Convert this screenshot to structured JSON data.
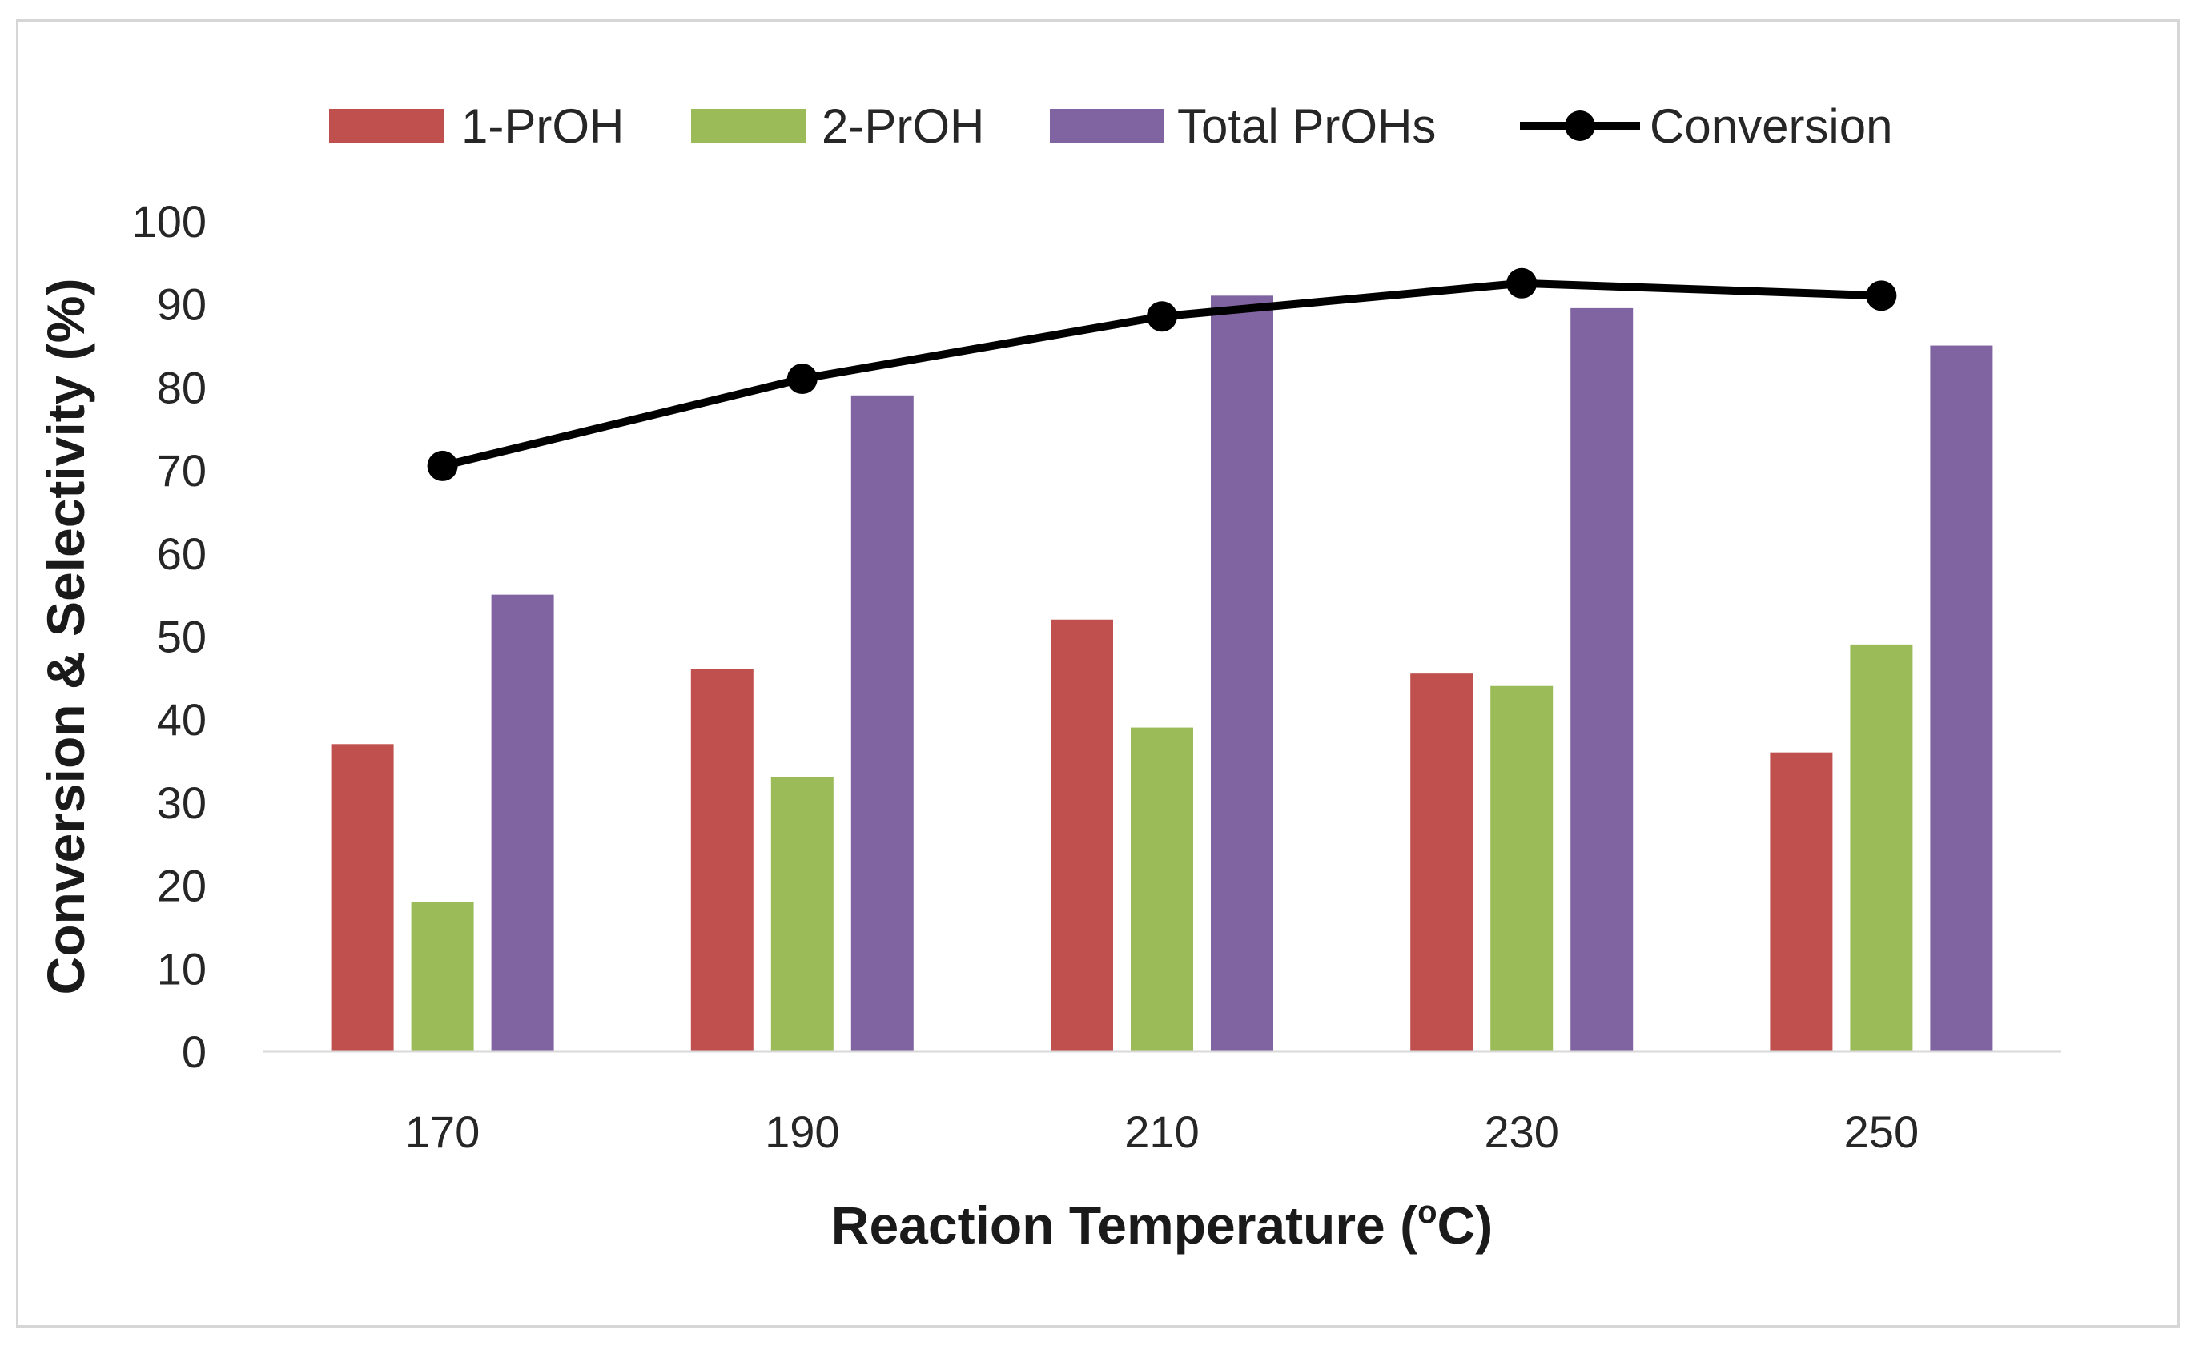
{
  "chart_data": {
    "type": "bar",
    "title": "",
    "categories": [
      "170",
      "190",
      "210",
      "230",
      "250"
    ],
    "series": [
      {
        "name": "1-PrOH",
        "kind": "bar",
        "color": "#c0504d",
        "values": [
          37,
          46,
          52,
          45.5,
          36
        ]
      },
      {
        "name": "2-PrOH",
        "kind": "bar",
        "color": "#9bbb59",
        "values": [
          18,
          33,
          39,
          44,
          49
        ]
      },
      {
        "name": "Total PrOHs",
        "kind": "bar",
        "color": "#8064a2",
        "values": [
          55,
          79,
          91,
          89.5,
          85
        ]
      },
      {
        "name": "Conversion",
        "kind": "line",
        "color": "#000000",
        "values": [
          70.5,
          81,
          88.5,
          92.5,
          91
        ]
      }
    ],
    "xlabel": {
      "main": "Reaction Temperature (",
      "sup": "o",
      "end": "C)"
    },
    "ylabel": "Conversion & Selectivity (%)",
    "ylim": [
      0,
      100
    ],
    "yticks": [
      "0",
      "10",
      "20",
      "30",
      "40",
      "50",
      "60",
      "70",
      "80",
      "90",
      "100"
    ],
    "legend_position": "top",
    "grid": false
  }
}
